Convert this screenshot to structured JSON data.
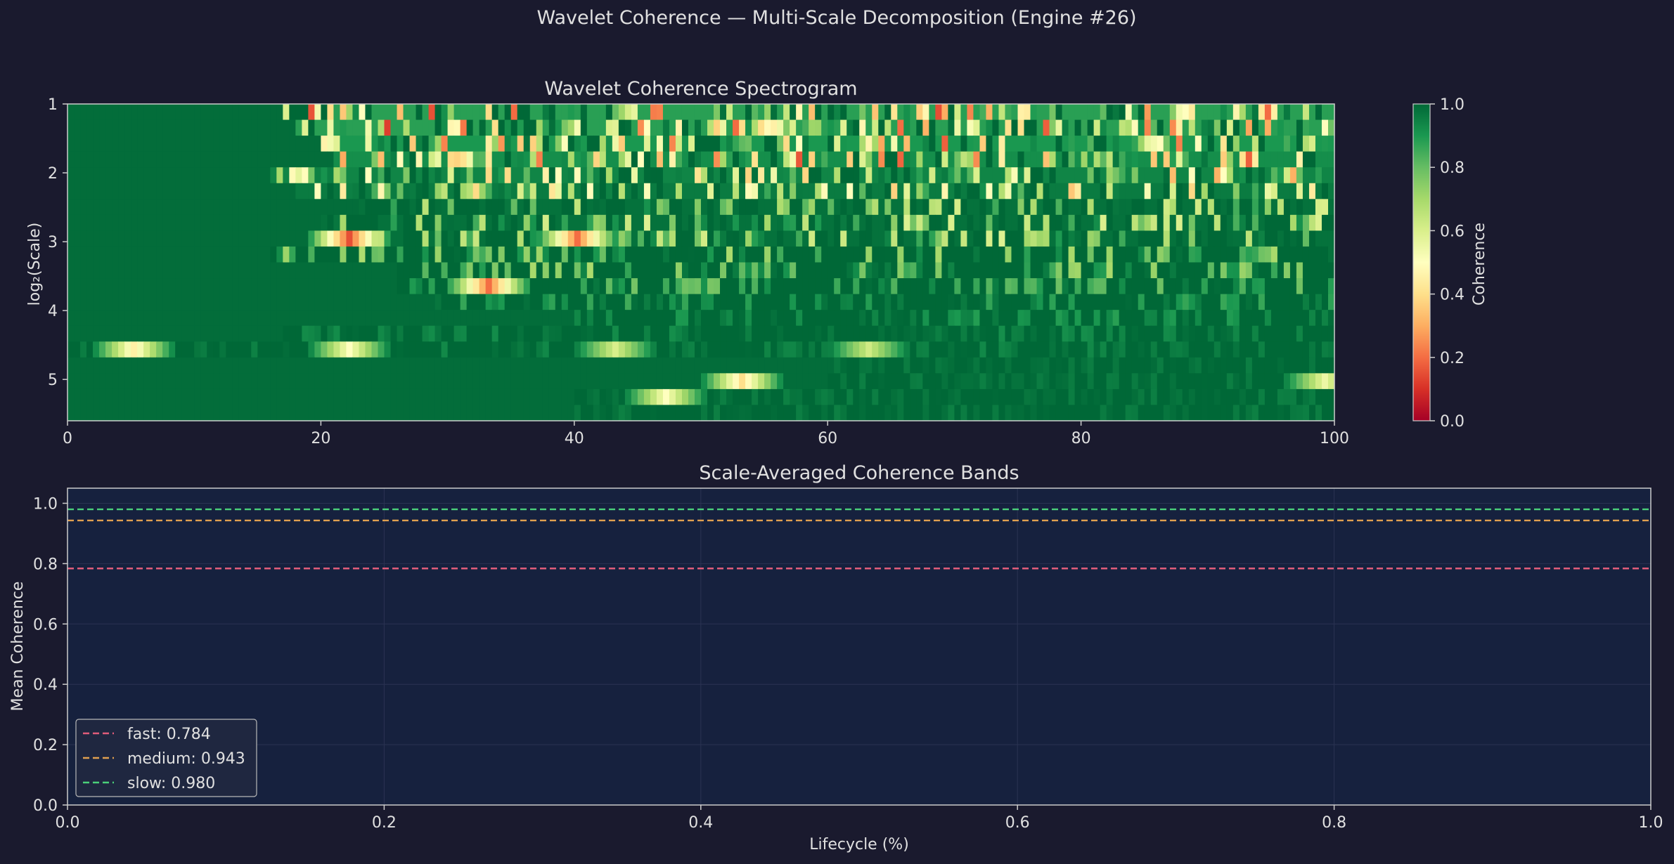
{
  "suptitle": "Wavelet Coherence — Multi-Scale Decomposition (Engine #26)",
  "chart_data": [
    {
      "type": "heatmap",
      "title": "Wavelet Coherence Spectrogram",
      "xlabel": "",
      "ylabel": "log₂(Scale)",
      "xlim": [
        0,
        100
      ],
      "ylim_log2_scale": [
        5.6,
        1.0
      ],
      "x_ticks": [
        "0",
        "20",
        "40",
        "60",
        "80",
        "100"
      ],
      "y_ticks": [
        "1",
        "2",
        "3",
        "4",
        "5"
      ],
      "rows": 20,
      "columns": 200,
      "colormap": "RdYlGn",
      "colorbar": {
        "label": "Coherence",
        "range": [
          0.0,
          1.0
        ],
        "ticks": [
          "0.0",
          "0.2",
          "0.4",
          "0.6",
          "0.8",
          "1.0"
        ]
      },
      "row_profiles": [
        {
          "row": 0,
          "onset_pct": 17,
          "base": 0.78,
          "spread": 0.5
        },
        {
          "row": 1,
          "onset_pct": 18,
          "base": 0.78,
          "spread": 0.5
        },
        {
          "row": 2,
          "onset_pct": 20,
          "base": 0.8,
          "spread": 0.45
        },
        {
          "row": 3,
          "onset_pct": 21,
          "base": 0.82,
          "spread": 0.42
        },
        {
          "row": 4,
          "onset_pct": 16,
          "base": 0.84,
          "spread": 0.4
        },
        {
          "row": 5,
          "onset_pct": 18,
          "base": 0.86,
          "spread": 0.35
        },
        {
          "row": 6,
          "onset_pct": 23,
          "base": 0.88,
          "spread": 0.3
        },
        {
          "row": 7,
          "onset_pct": 20,
          "base": 0.88,
          "spread": 0.3
        },
        {
          "row": 8,
          "onset_pct": 21,
          "base": 0.88,
          "spread": 0.3
        },
        {
          "row": 9,
          "onset_pct": 16,
          "base": 0.9,
          "spread": 0.22
        },
        {
          "row": 10,
          "onset_pct": 26,
          "base": 0.9,
          "spread": 0.22
        },
        {
          "row": 11,
          "onset_pct": 26,
          "base": 0.93,
          "spread": 0.16
        },
        {
          "row": 12,
          "onset_pct": 29,
          "base": 0.95,
          "spread": 0.1
        },
        {
          "row": 13,
          "onset_pct": 40,
          "base": 0.96,
          "spread": 0.08
        },
        {
          "row": 14,
          "onset_pct": 17,
          "base": 0.97,
          "spread": 0.05
        },
        {
          "row": 15,
          "onset_pct": 0,
          "base": 0.97,
          "spread": 0.04
        },
        {
          "row": 16,
          "onset_pct": 60,
          "base": 0.98,
          "spread": 0.03
        },
        {
          "row": 17,
          "onset_pct": 60,
          "base": 0.98,
          "spread": 0.03
        },
        {
          "row": 18,
          "onset_pct": 40,
          "base": 0.98,
          "spread": 0.03
        },
        {
          "row": 19,
          "onset_pct": 40,
          "base": 0.98,
          "spread": 0.03
        }
      ],
      "hotspots": [
        {
          "row": 15,
          "x_pct": 5,
          "value": 0.45
        },
        {
          "row": 15,
          "x_pct": 22,
          "value": 0.5
        },
        {
          "row": 15,
          "x_pct": 43,
          "value": 0.6
        },
        {
          "row": 15,
          "x_pct": 63,
          "value": 0.62
        },
        {
          "row": 17,
          "x_pct": 53,
          "value": 0.4
        },
        {
          "row": 17,
          "x_pct": 99,
          "value": 0.55
        },
        {
          "row": 18,
          "x_pct": 47,
          "value": 0.5
        },
        {
          "row": 11,
          "x_pct": 33,
          "value": 0.2
        },
        {
          "row": 8,
          "x_pct": 22,
          "value": 0.15
        },
        {
          "row": 8,
          "x_pct": 40,
          "value": 0.2
        }
      ]
    },
    {
      "type": "line",
      "title": "Scale-Averaged Coherence Bands",
      "xlabel": "Lifecycle (%)",
      "ylabel": "Mean Coherence",
      "xlim": [
        0.0,
        1.0
      ],
      "ylim": [
        0.0,
        1.05
      ],
      "x_ticks": [
        "0.0",
        "0.2",
        "0.4",
        "0.6",
        "0.8",
        "1.0"
      ],
      "y_ticks": [
        "0.0",
        "0.2",
        "0.4",
        "0.6",
        "0.8",
        "1.0"
      ],
      "grid": true,
      "legend_position": "lower-left",
      "series": [
        {
          "name": "fast",
          "label": "fast: 0.784",
          "value": 0.784,
          "color": "#e05c7a",
          "style": "dashed"
        },
        {
          "name": "medium",
          "label": "medium: 0.943",
          "value": 0.943,
          "color": "#e0a050",
          "style": "dashed"
        },
        {
          "name": "slow",
          "label": "slow: 0.980",
          "value": 0.98,
          "color": "#4ad07a",
          "style": "dashed"
        }
      ]
    }
  ],
  "colors": {
    "figure_bg": "#1a1a2e",
    "axes_bg": "#16213e",
    "text": "#e0e0e0",
    "spine": "#cccccc"
  }
}
